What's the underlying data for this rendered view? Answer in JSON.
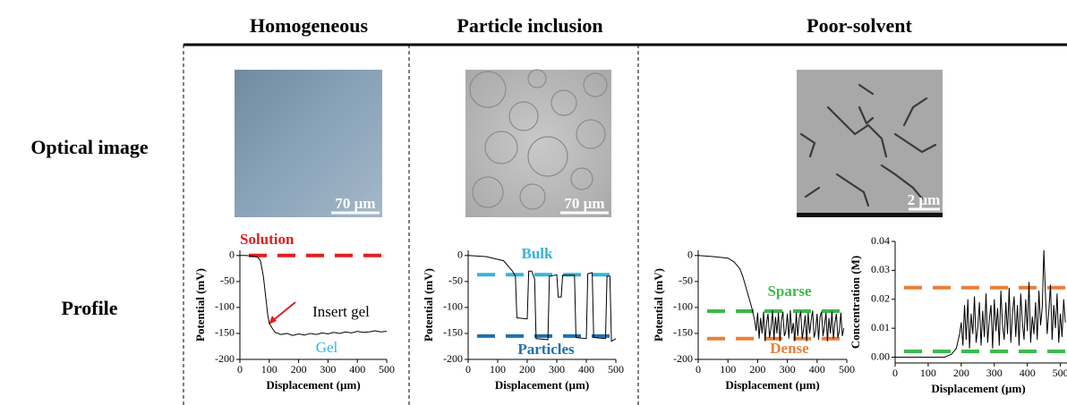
{
  "columns": [
    "Homogeneous",
    "Particle inclusion",
    "Poor-solvent"
  ],
  "rows": [
    "Optical image",
    "Profile"
  ],
  "scale_bars": [
    "70 µm",
    "70 µm",
    "2 µm"
  ],
  "chart_data": [
    {
      "type": "line",
      "x_label": "Displacement (µm)",
      "y_label": "Potential (mV)",
      "xlim": [
        0,
        500
      ],
      "ylim": [
        -200,
        10
      ],
      "xticks": [
        0,
        100,
        200,
        300,
        400,
        500
      ],
      "yticks": [
        0,
        -50,
        -100,
        -150,
        -200
      ],
      "x": [
        0,
        20,
        40,
        60,
        70,
        80,
        90,
        95,
        100,
        110,
        120,
        140,
        160,
        180,
        200,
        220,
        240,
        260,
        280,
        300,
        320,
        340,
        360,
        380,
        400,
        420,
        440,
        460,
        480,
        500
      ],
      "color": "#000000",
      "values": [
        0,
        0,
        -1,
        -3,
        -10,
        -40,
        -90,
        -115,
        -130,
        -140,
        -148,
        -152,
        -150,
        -154,
        -151,
        -153,
        -150,
        -152,
        -149,
        -151,
        -148,
        -150,
        -147,
        -149,
        -146,
        -148,
        -147,
        -145,
        -147,
        -146
      ],
      "reference_lines": [
        {
          "label": "Solution",
          "value": 0,
          "color": "#e01f1f"
        }
      ],
      "annotations": [
        {
          "text": "Insert gel",
          "color": "#000000"
        },
        {
          "text": "Gel",
          "color": "#33b4de"
        }
      ]
    },
    {
      "type": "line",
      "x_label": "Displacement (µm)",
      "y_label": "Potential (mV)",
      "xlim": [
        0,
        500
      ],
      "ylim": [
        -200,
        10
      ],
      "xticks": [
        0,
        100,
        200,
        300,
        400,
        500
      ],
      "yticks": [
        0,
        -50,
        -100,
        -150,
        -200
      ],
      "x": [
        0,
        60,
        120,
        150,
        160,
        165,
        200,
        205,
        215,
        225,
        230,
        270,
        275,
        300,
        305,
        315,
        320,
        360,
        365,
        400,
        405,
        420,
        425,
        465,
        470,
        480,
        485,
        500
      ],
      "color": "#000000",
      "values": [
        0,
        -2,
        -10,
        -30,
        -40,
        -120,
        -122,
        -30,
        -30,
        -45,
        -160,
        -162,
        -40,
        -37,
        -80,
        -80,
        -38,
        -38,
        -158,
        -160,
        -35,
        -33,
        -158,
        -160,
        -40,
        -40,
        -165,
        -160
      ],
      "reference_lines": [
        {
          "label": "Bulk",
          "value": -37,
          "color": "#33b4de"
        },
        {
          "label": "Particles",
          "value": -155,
          "color": "#1f6fb0"
        }
      ],
      "annotations": []
    },
    {
      "type": "line",
      "x_label": "Displacement (µm)",
      "y_label": "Potential (mV)",
      "xlim": [
        0,
        500
      ],
      "ylim": [
        -200,
        10
      ],
      "xticks": [
        0,
        100,
        200,
        300,
        400,
        500
      ],
      "yticks": [
        0,
        -50,
        -100,
        -150,
        -200
      ],
      "x": [
        0,
        50,
        100,
        120,
        140,
        150,
        160,
        170,
        180,
        190,
        195,
        200,
        205,
        210,
        215,
        220,
        225,
        230,
        235,
        240,
        245,
        250,
        255,
        260,
        265,
        270,
        275,
        280,
        285,
        290,
        295,
        300,
        305,
        310,
        315,
        320,
        325,
        330,
        335,
        340,
        345,
        350,
        355,
        360,
        365,
        370,
        375,
        380,
        385,
        390,
        395,
        400,
        405,
        410,
        415,
        420,
        425,
        430,
        435,
        440,
        445,
        450,
        455,
        460,
        465,
        470,
        475,
        480,
        485,
        490
      ],
      "color": "#000000",
      "values": [
        0,
        -2,
        -5,
        -12,
        -25,
        -40,
        -60,
        -80,
        -100,
        -125,
        -145,
        -110,
        -160,
        -120,
        -150,
        -108,
        -165,
        -130,
        -112,
        -158,
        -140,
        -106,
        -162,
        -118,
        -150,
        -110,
        -165,
        -125,
        -108,
        -155,
        -145,
        -112,
        -160,
        -105,
        -150,
        -130,
        -165,
        -110,
        -155,
        -120,
        -108,
        -160,
        -140,
        -115,
        -165,
        -110,
        -150,
        -125,
        -106,
        -158,
        -145,
        -112,
        -162,
        -118,
        -108,
        -155,
        -135,
        -110,
        -165,
        -120,
        -150,
        -108,
        -160,
        -130,
        -112,
        -158,
        -145,
        -110,
        -155,
        -140
      ],
      "reference_lines": [
        {
          "label": "Sparse",
          "value": -107,
          "color": "#3cb94a"
        },
        {
          "label": "Dense",
          "value": -160,
          "color": "#e8803a"
        }
      ],
      "annotations": []
    },
    {
      "type": "line",
      "x_label": "Displacement (µm)",
      "y_label": "Concentration (M)",
      "xlim": [
        0,
        520
      ],
      "ylim": [
        -0.002,
        0.04
      ],
      "xticks": [
        0,
        100,
        200,
        300,
        400,
        500
      ],
      "yticks": [
        {
          "value": 0,
          "label": "0.00"
        },
        0.01,
        0.02,
        0.03,
        0.04
      ],
      "x": [
        0,
        100,
        150,
        170,
        185,
        195,
        200,
        205,
        210,
        215,
        220,
        225,
        230,
        235,
        240,
        245,
        250,
        255,
        260,
        265,
        270,
        275,
        280,
        285,
        290,
        295,
        300,
        305,
        310,
        315,
        320,
        325,
        330,
        335,
        340,
        345,
        350,
        355,
        360,
        365,
        370,
        375,
        380,
        385,
        390,
        395,
        400,
        405,
        410,
        415,
        420,
        425,
        430,
        435,
        440,
        445,
        450,
        455,
        460,
        465,
        470,
        475,
        480,
        485,
        490,
        495,
        500,
        505,
        510,
        515
      ],
      "color": "#000000",
      "values": [
        0,
        0,
        0,
        0.001,
        0.003,
        0.008,
        0.012,
        0.004,
        0.018,
        0.006,
        0.02,
        0.003,
        0.015,
        0.008,
        0.021,
        0.005,
        0.01,
        0.019,
        0.004,
        0.016,
        0.007,
        0.022,
        0.005,
        0.013,
        0.018,
        0.003,
        0.02,
        0.009,
        0.017,
        0.004,
        0.023,
        0.011,
        0.006,
        0.019,
        0.008,
        0.024,
        0.005,
        0.015,
        0.021,
        0.007,
        0.018,
        0.004,
        0.022,
        0.012,
        0.006,
        0.02,
        0.009,
        0.026,
        0.005,
        0.014,
        0.008,
        0.019,
        0.006,
        0.023,
        0.011,
        0.017,
        0.037,
        0.021,
        0.008,
        0.016,
        0.025,
        0.006,
        0.018,
        0.01,
        0.022,
        0.005,
        0.015,
        0.007,
        0.02,
        0.012
      ],
      "reference_lines": [
        {
          "value": 0.024,
          "color": "#e8803a"
        },
        {
          "value": 0.002,
          "color": "#3cb94a"
        }
      ],
      "annotations": []
    }
  ]
}
